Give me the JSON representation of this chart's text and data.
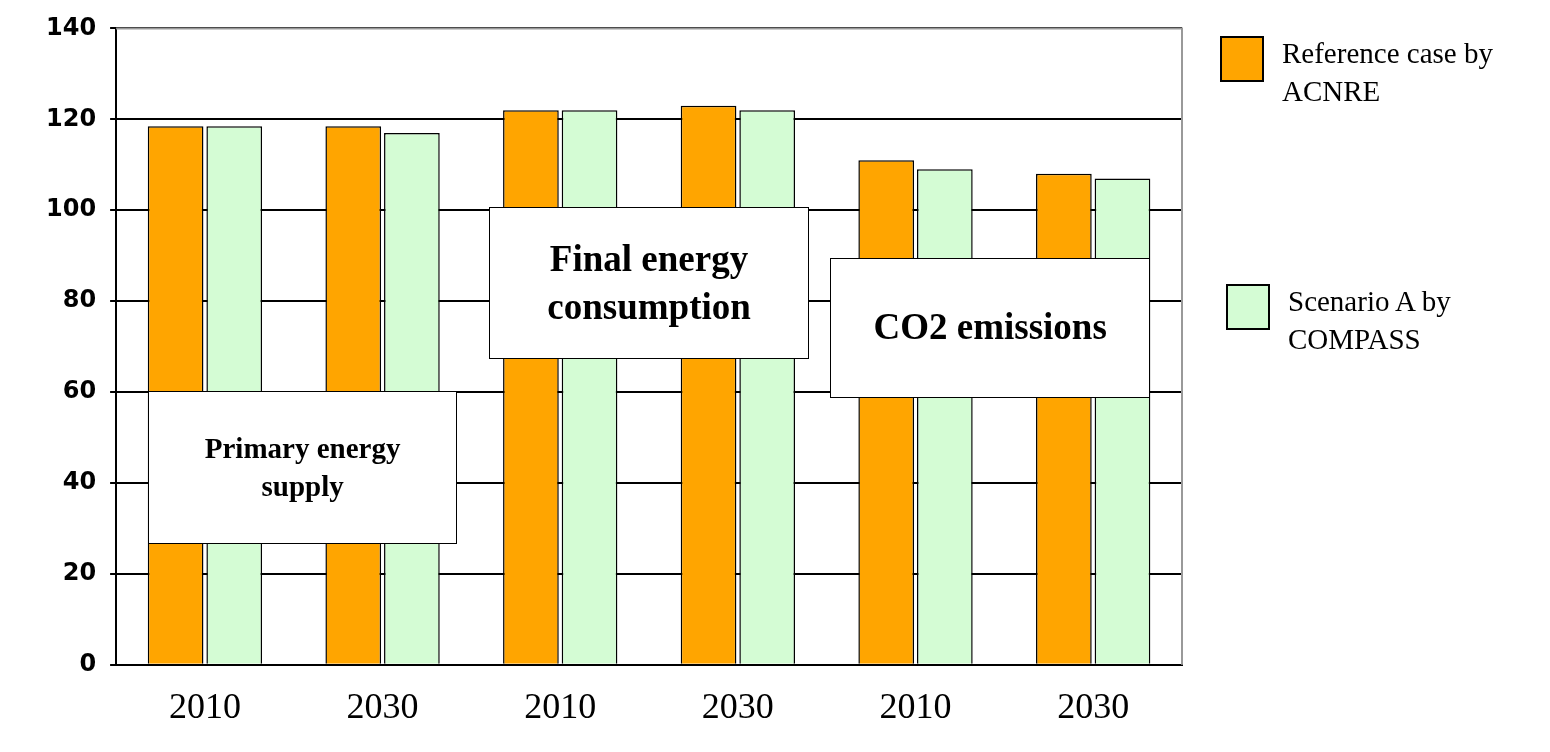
{
  "chart_data": {
    "type": "bar",
    "categories": [
      "2010",
      "2030",
      "2010",
      "2030",
      "2010",
      "2030"
    ],
    "series": [
      {
        "name": "Reference case by ACNRE",
        "color": "#ffa500",
        "values": [
          118.5,
          118.5,
          122,
          123,
          111,
          108
        ]
      },
      {
        "name": "Scenario A by COMPASS",
        "color": "#d4fcd4",
        "values": [
          118.5,
          117,
          122,
          122,
          109,
          107
        ]
      }
    ],
    "ylim": [
      0,
      140
    ],
    "yticks": [
      0,
      20,
      40,
      60,
      80,
      100,
      120,
      140
    ],
    "grid": "y",
    "legend": "right",
    "annotations": [
      "Primary energy supply",
      "Final energy consumption",
      "CO2 emissions"
    ]
  }
}
